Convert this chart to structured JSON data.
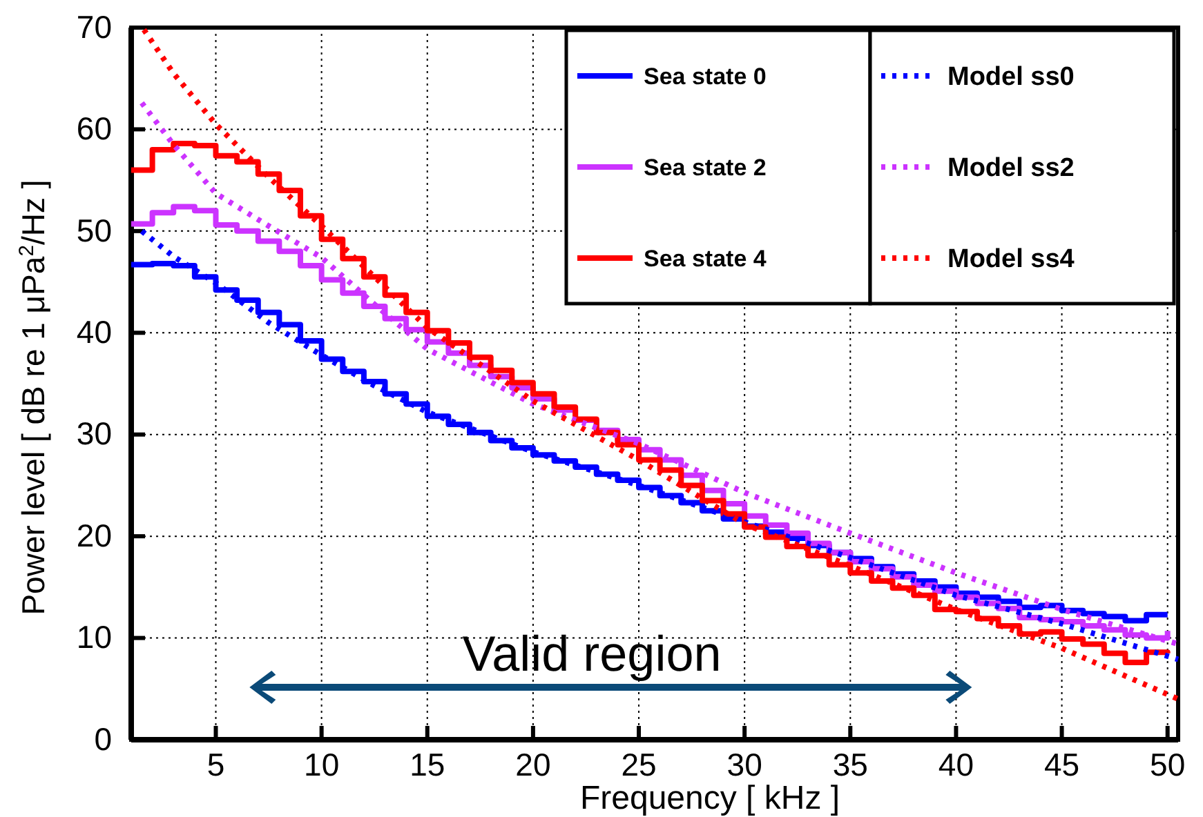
{
  "chart_data": {
    "type": "step",
    "xlabel": "Frequency [ kHz ]",
    "ylabel": "Power level [ dB re 1 μPa$^{2}$/Hz ]",
    "xlim": [
      1,
      50.5
    ],
    "ylim": [
      0,
      70
    ],
    "xticks": [
      5,
      10,
      15,
      20,
      25,
      30,
      35,
      40,
      45,
      50
    ],
    "yticks": [
      0,
      10,
      20,
      30,
      40,
      50,
      60,
      70
    ],
    "grid": true,
    "legend": "top right",
    "annotations": [
      "Valid region"
    ],
    "x": [
      1,
      2,
      3,
      4,
      5,
      6,
      7,
      8,
      9,
      10,
      11,
      12,
      13,
      14,
      15,
      16,
      17,
      18,
      19,
      20,
      21,
      22,
      23,
      24,
      25,
      26,
      27,
      28,
      29,
      30,
      31,
      32,
      33,
      34,
      35,
      36,
      37,
      38,
      39,
      40,
      41,
      42,
      43,
      44,
      45,
      46,
      47,
      48,
      49,
      50
    ],
    "series": [
      {
        "name": "Sea state 0",
        "color": "#0000ff",
        "values": [
          46.7,
          46.8,
          46.6,
          45.5,
          44.2,
          43.2,
          42,
          40.8,
          39.2,
          37.4,
          36.2,
          35.2,
          34,
          33,
          31.8,
          31,
          30.2,
          29.4,
          28.7,
          28,
          27.4,
          26.8,
          26.1,
          25.5,
          24.8,
          24,
          23.3,
          22.5,
          21.7,
          21,
          20.4,
          19.8,
          19.1,
          18.4,
          17.8,
          17,
          16.3,
          15.6,
          15,
          14.4,
          14,
          13.6,
          13,
          13.2,
          12.7,
          12.4,
          12.1,
          11.7,
          12.3,
          12.3
        ]
      },
      {
        "name": "Sea state 2",
        "color": "#cc33ff",
        "values": [
          50.7,
          51.8,
          52.4,
          52,
          50.6,
          50,
          49,
          48,
          46.6,
          45.2,
          43.9,
          42.6,
          41.4,
          40.3,
          39.1,
          38,
          36.8,
          35.7,
          34.6,
          33.5,
          32.4,
          31.4,
          30.4,
          29.5,
          28.5,
          27.5,
          26,
          24.5,
          23.2,
          22,
          21.1,
          20.3,
          19.3,
          18.4,
          17.5,
          16.8,
          16,
          15.2,
          14.6,
          14,
          13.4,
          12.9,
          12,
          11.8,
          11.6,
          11.2,
          10.8,
          10.3,
          10,
          10.7
        ]
      },
      {
        "name": "Sea state 4",
        "color": "#ff0000",
        "values": [
          56,
          58,
          58.6,
          58.4,
          57.4,
          56.8,
          55.6,
          54,
          51.5,
          49.2,
          47.3,
          45.5,
          43.7,
          42,
          40.2,
          39,
          37.6,
          36.3,
          35.1,
          34,
          32.7,
          31.5,
          30.2,
          29,
          27.5,
          26.5,
          25,
          23.5,
          22.2,
          20.9,
          19.9,
          19,
          18.1,
          17.2,
          16.4,
          15.6,
          14.9,
          14.2,
          12.8,
          12.6,
          11.9,
          11.2,
          10.4,
          10.6,
          9.9,
          9.4,
          8.5,
          7.6,
          8.6,
          8.5
        ]
      },
      {
        "name": "Model ss0",
        "type": "line",
        "line_style": "dotted",
        "color": "#0000ff",
        "x": [
          1.5,
          3,
          5,
          7.5,
          10,
          12.5,
          15,
          20,
          25,
          30,
          35,
          40,
          45,
          50.5
        ],
        "values": [
          50,
          47.5,
          44.9,
          41,
          37.8,
          34.8,
          32.2,
          28.3,
          25,
          21.4,
          17.9,
          14.2,
          11.4,
          7.9
        ]
      },
      {
        "name": "Model ss2",
        "type": "line",
        "line_style": "dotted",
        "color": "#cc33ff",
        "x": [
          1.5,
          3,
          5,
          7.5,
          10,
          12.5,
          15,
          20,
          25,
          30,
          35,
          40,
          45,
          50.5
        ],
        "values": [
          62.6,
          58.5,
          53.7,
          50.5,
          47.4,
          42.8,
          38.4,
          33,
          29.1,
          24.3,
          20.3,
          16.4,
          12.8,
          9.4
        ]
      },
      {
        "name": "Model ss4",
        "type": "line",
        "line_style": "dotted",
        "color": "#ff0000",
        "x": [
          1.6,
          3,
          5,
          7.5,
          10,
          12.5,
          15,
          20,
          25,
          30,
          35,
          40,
          45,
          50.5
        ],
        "values": [
          69.8,
          65.5,
          60.5,
          55.3,
          50.5,
          45.5,
          40.5,
          33.3,
          27.5,
          21.2,
          17.1,
          12.8,
          9,
          4
        ]
      }
    ]
  }
}
